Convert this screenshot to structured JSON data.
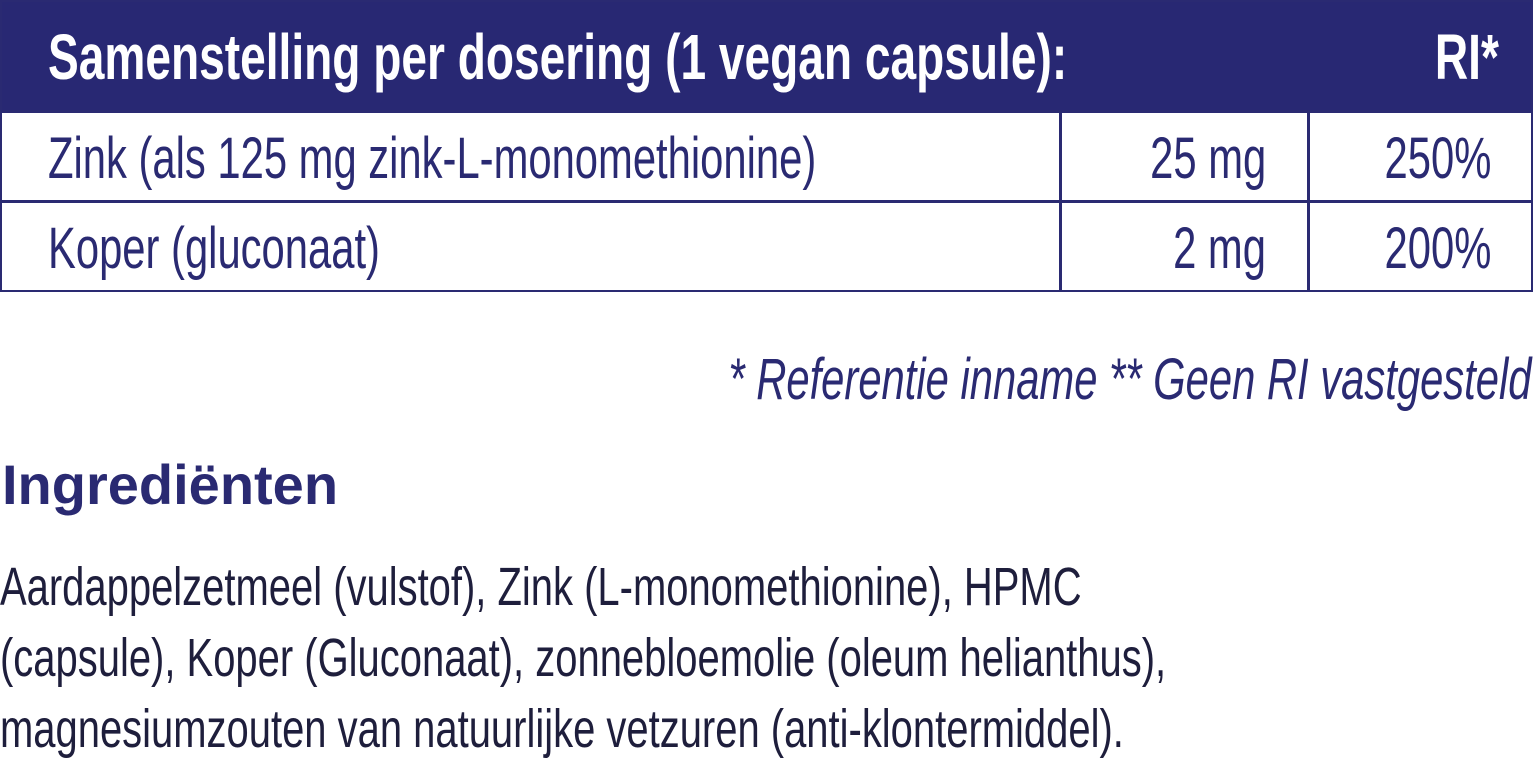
{
  "table": {
    "header": {
      "title": "Samenstelling per dosering (1 vegan capsule):",
      "ri": "RI*"
    },
    "rows": [
      {
        "name": "Zink (als 125 mg zink-L-monomethionine)",
        "amount": "25 mg",
        "ri": "250%"
      },
      {
        "name": "Koper (gluconaat)",
        "amount": "2 mg",
        "ri": "200%"
      }
    ]
  },
  "footnote": "* Referentie inname  ** Geen RI vastgesteld",
  "ingredients": {
    "title": "Ingrediënten",
    "lines": [
      "Aardappelzetmeel (vulstof), Zink (L-monomethionine), HPMC",
      "(capsule), Koper (Gluconaat), zonnebloemolie (oleum helianthus),",
      "magnesiumzouten van natuurlijke vetzuren (anti-klontermiddel)."
    ]
  },
  "colors": {
    "brand": "#282873",
    "text": "#2a2a72"
  }
}
